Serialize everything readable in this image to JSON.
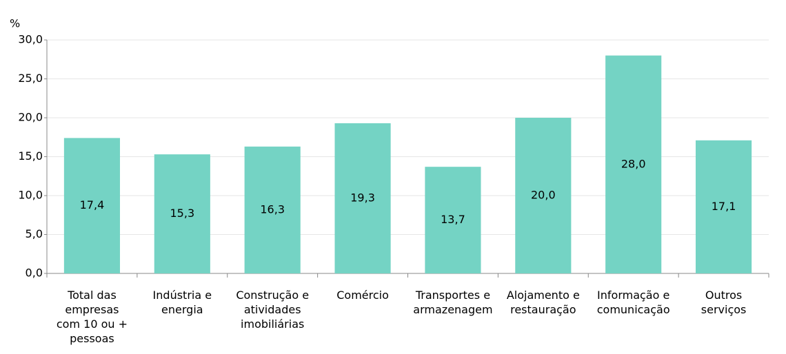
{
  "chart_data": {
    "type": "bar",
    "y_label": "%",
    "categories": [
      "Total das\nempresas\ncom 10 ou +\npessoas",
      "Indústria e\nenergia",
      "Construção e\natividades\nimobiliárias",
      "Comércio",
      "Transportes e\narmazenagem",
      "Alojamento e\nrestauração",
      "Informação e\ncomunicação",
      "Outros\nserviços"
    ],
    "values": [
      17.4,
      15.3,
      16.3,
      19.3,
      13.7,
      20.0,
      28.0,
      17.1
    ],
    "value_labels": [
      "17,4",
      "15,3",
      "16,3",
      "19,3",
      "13,7",
      "20,0",
      "28,0",
      "17,1"
    ],
    "color": "#74d3c4",
    "ylim": [
      0,
      30
    ],
    "yticks": [
      {
        "value": 0,
        "label": "0,0"
      },
      {
        "value": 5,
        "label": "5,0"
      },
      {
        "value": 10,
        "label": "10,0"
      },
      {
        "value": 15,
        "label": "15,0"
      },
      {
        "value": 20,
        "label": "20,0"
      },
      {
        "value": 25,
        "label": "25,0"
      },
      {
        "value": 30,
        "label": "30,0"
      }
    ],
    "grid": true
  }
}
